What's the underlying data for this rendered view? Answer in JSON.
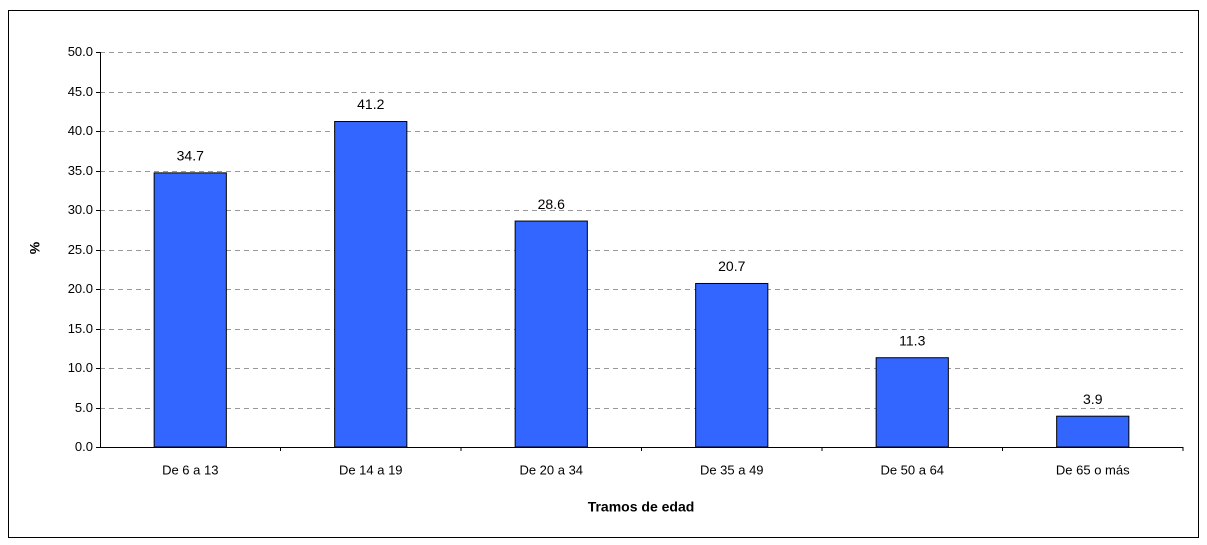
{
  "chart_data": {
    "type": "bar",
    "x_label": "Tramos de edad",
    "y_label": "%",
    "categories": [
      "De 6 a 13",
      "De 14 a 19",
      "De 20 a 34",
      "De 35 a 49",
      "De 50 a 64",
      "De 65 o más"
    ],
    "values": [
      34.7,
      41.2,
      28.6,
      20.7,
      11.3,
      3.9
    ],
    "color": "#3366ff",
    "ylim": [
      0,
      50
    ],
    "yticks": [
      {
        "value": 0,
        "label": "0.0"
      },
      {
        "value": 5,
        "label": "5.0"
      },
      {
        "value": 10,
        "label": "10.0"
      },
      {
        "value": 15,
        "label": "15.0"
      },
      {
        "value": 20,
        "label": "20.0"
      },
      {
        "value": 25,
        "label": "25.0"
      },
      {
        "value": 30,
        "label": "30.0"
      },
      {
        "value": 35,
        "label": "35.0"
      },
      {
        "value": 40,
        "label": "40.0"
      },
      {
        "value": 45,
        "label": "45.0"
      },
      {
        "value": 50,
        "label": "50.0"
      }
    ],
    "grid": true
  }
}
